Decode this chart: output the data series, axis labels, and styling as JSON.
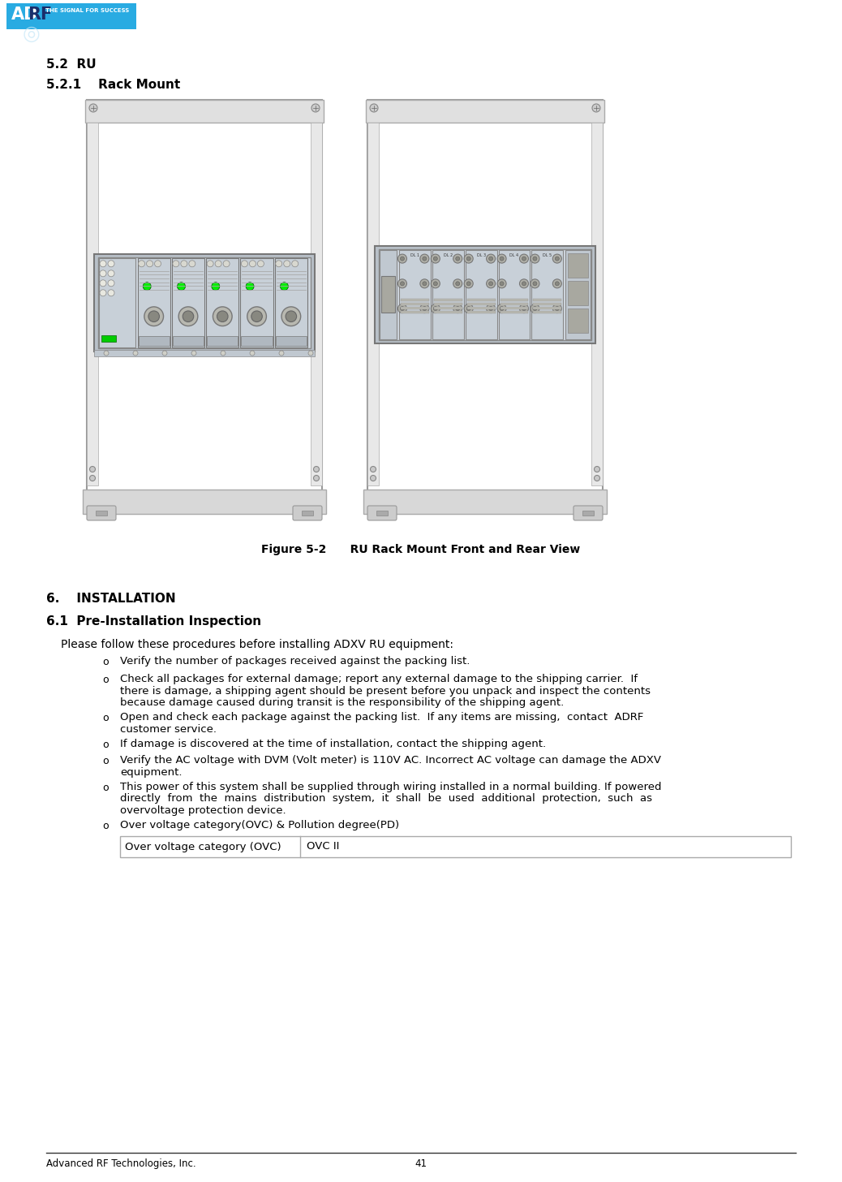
{
  "page_num": "41",
  "footer_left": "Advanced RF Technologies, Inc.",
  "footer_center": "41",
  "section_52": "5.2  RU",
  "section_521": "5.2.1    Rack Mount",
  "figure_caption": "Figure 5-2      RU Rack Mount Front and Rear View",
  "section_6": "6.    INSTALLATION",
  "section_61": "6.1  Pre-Installation Inspection",
  "para1": "Please follow these procedures before installing ADXV RU equipment:",
  "bullet1": "Verify the number of packages received against the packing list.",
  "bullet2_l1": "Check all packages for external damage; report any external damage to the shipping carrier.  If",
  "bullet2_l2": "there is damage, a shipping agent should be present before you unpack and inspect the contents",
  "bullet2_l3": "because damage caused during transit is the responsibility of the shipping agent.",
  "bullet3_l1": "Open and check each package against the packing list.  If any items are missing,  contact  ADRF",
  "bullet3_l2": "customer service.",
  "bullet4": "If damage is discovered at the time of installation, contact the shipping agent.",
  "bullet5_l1": "Verify the AC voltage with DVM (Volt meter) is 110V AC. Incorrect AC voltage can damage the ADXV",
  "bullet5_l2": "equipment.",
  "bullet6_l1": "This power of this system shall be supplied through wiring installed in a normal building. If powered",
  "bullet6_l2": "directly  from  the  mains  distribution  system,  it  shall  be  used  additional  protection,  such  as",
  "bullet6_l3": "overvoltage protection device.",
  "bullet7": "Over voltage category(OVC) & Pollution degree(PD)",
  "table_row1_col1": "Over voltage category (OVC)",
  "table_row1_col2": "OVC II",
  "bg_color": "#ffffff",
  "text_color": "#000000",
  "logo_adrf_color": "#29abe2",
  "rack_outer_color": "#cccccc",
  "rack_frame_color": "#aaaaaa",
  "rack_inner_bg": "#e8e8e8",
  "rack_equip_bg": "#c8d0d8",
  "rack_equip_edge": "#888888"
}
